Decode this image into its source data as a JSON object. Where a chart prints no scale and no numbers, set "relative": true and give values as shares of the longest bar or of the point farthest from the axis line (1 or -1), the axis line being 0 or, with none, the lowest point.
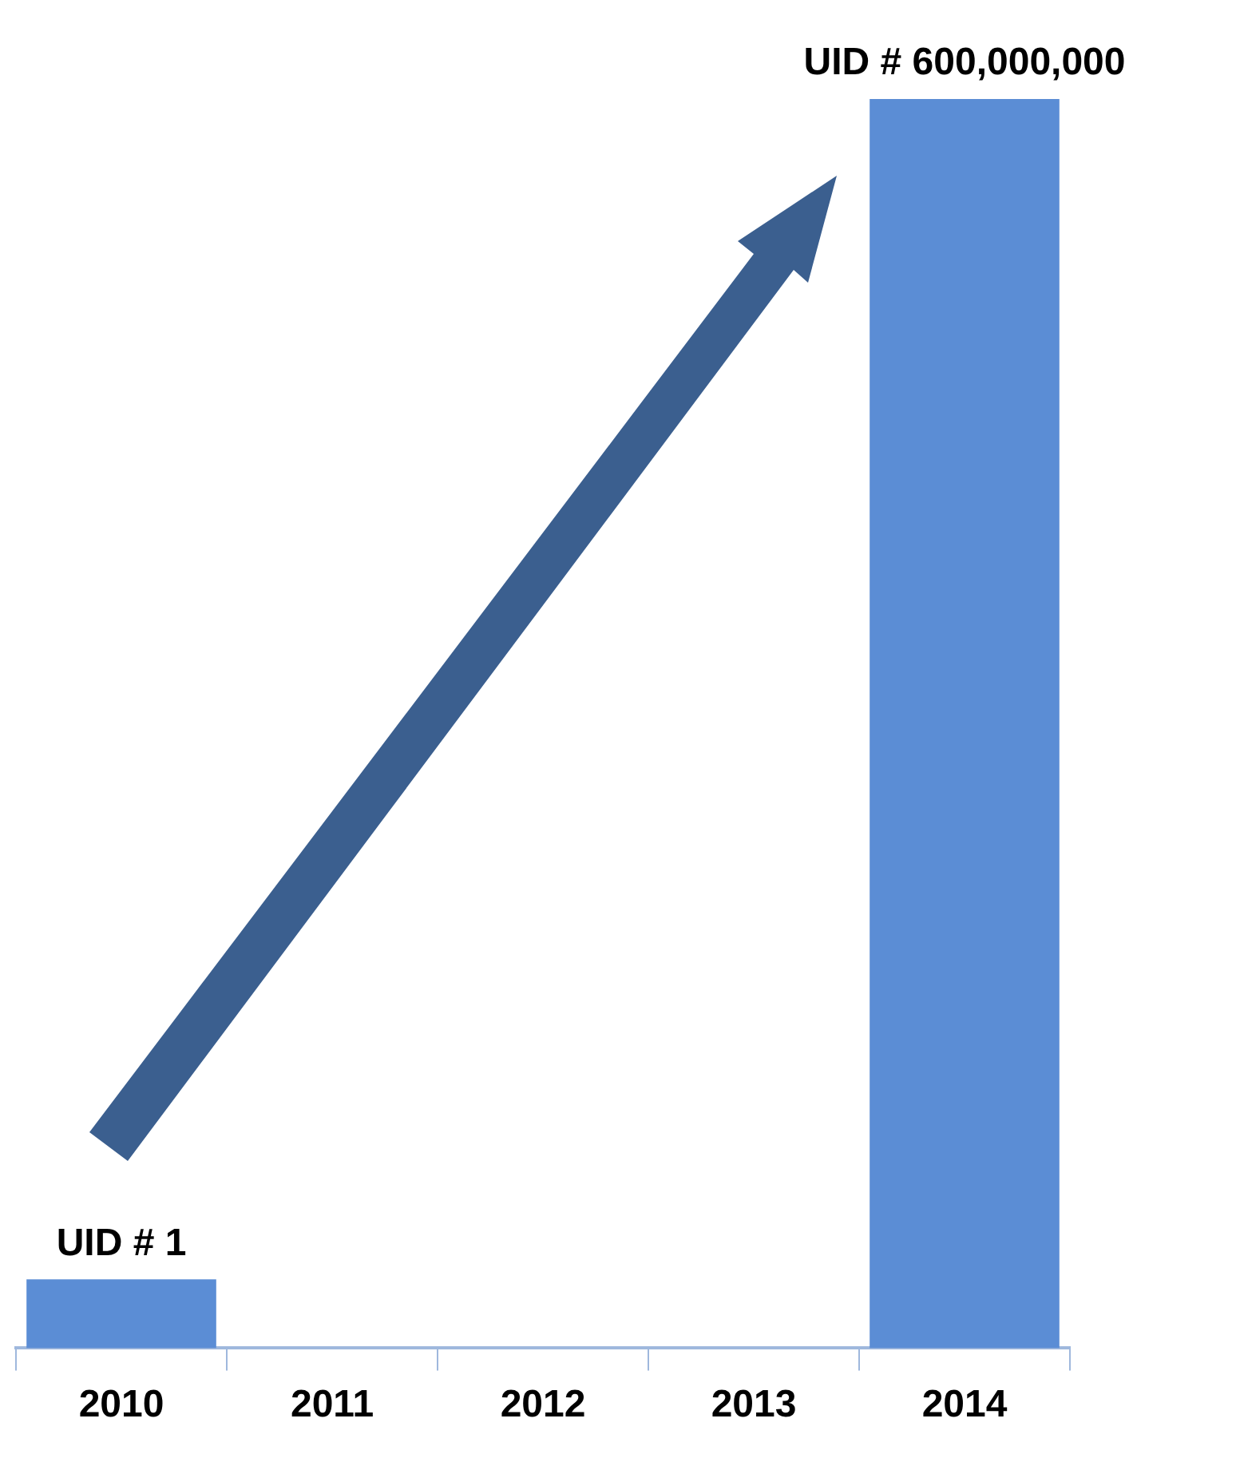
{
  "chart_data": {
    "type": "bar",
    "relative": true,
    "categories": [
      "2010",
      "2011",
      "2012",
      "2013",
      "2014"
    ],
    "values": [
      0.055,
      null,
      null,
      null,
      1
    ],
    "annotations": [
      {
        "text": "UID # 1",
        "x": "2010",
        "y": 0.055
      },
      {
        "text": "UID # 600,000,000",
        "x": "2014",
        "y": 1
      }
    ],
    "color": "#5b8dd5"
  }
}
